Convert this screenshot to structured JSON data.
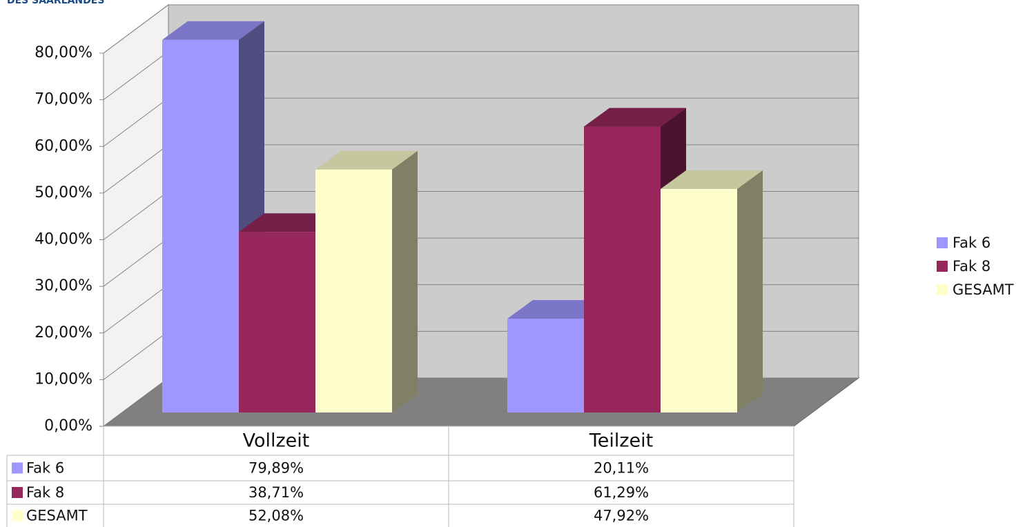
{
  "header": "DES SAARLANDES",
  "chart_data": {
    "type": "bar3d",
    "categories": [
      "Vollzeit",
      "Teilzeit"
    ],
    "series": [
      {
        "name": "Fak 6",
        "color": "#9e97ff",
        "values": [
          79.89,
          20.11
        ],
        "value_labels": [
          "79,89%",
          "20,11%"
        ]
      },
      {
        "name": "Fak 8",
        "color": "#96265c",
        "values": [
          38.71,
          61.29
        ],
        "value_labels": [
          "38,71%",
          "61,29%"
        ]
      },
      {
        "name": "GESAMT",
        "color": "#ffffcc",
        "values": [
          52.08,
          47.92
        ],
        "value_labels": [
          "52,08%",
          "47,92%"
        ]
      }
    ],
    "ylim": [
      0,
      80
    ],
    "yticks": [
      {
        "value": 0,
        "label": "0,00%"
      },
      {
        "value": 10,
        "label": "10,00%"
      },
      {
        "value": 20,
        "label": "20,00%"
      },
      {
        "value": 30,
        "label": "30,00%"
      },
      {
        "value": 40,
        "label": "40,00%"
      },
      {
        "value": 50,
        "label": "50,00%"
      },
      {
        "value": 60,
        "label": "60,00%"
      },
      {
        "value": 70,
        "label": "70,00%"
      },
      {
        "value": 80,
        "label": "80,00%"
      }
    ],
    "grid": true,
    "legend": "right",
    "data_table": true
  }
}
